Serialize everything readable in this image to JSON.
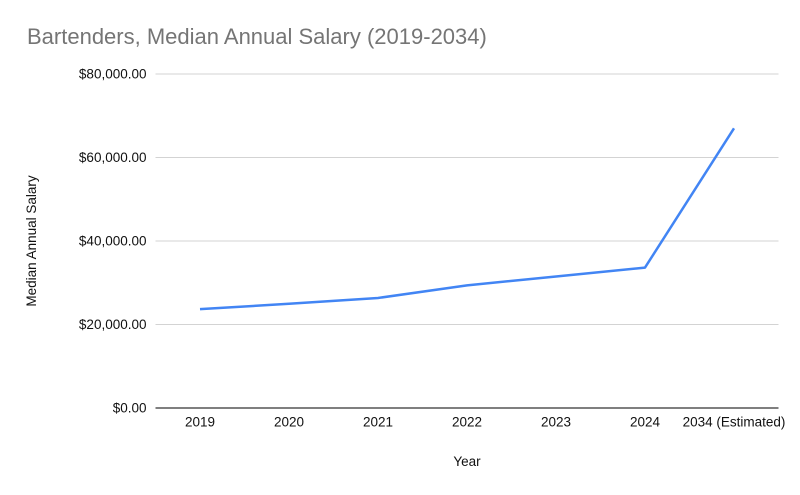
{
  "chart_data": {
    "type": "line",
    "title": "Bartenders, Median Annual Salary (2019-2034)",
    "categories": [
      "2019",
      "2020",
      "2021",
      "2022",
      "2023",
      "2024",
      "2034 (Estimated)"
    ],
    "values": [
      23680,
      24960,
      26350,
      29380,
      31510,
      33630,
      67000
    ],
    "xlabel": "Year",
    "ylabel": "Median Annual Salary",
    "ylim": [
      0,
      80000
    ],
    "y_ticks": [
      {
        "value": 0,
        "label": "$0.00"
      },
      {
        "value": 20000,
        "label": "$20,000.00"
      },
      {
        "value": 40000,
        "label": "$40,000.00"
      },
      {
        "value": 60000,
        "label": "$60,000.00"
      },
      {
        "value": 80000,
        "label": "$80,000.00"
      }
    ],
    "grid": true,
    "legend": "none",
    "colors": {
      "line": "#4285f4",
      "title_text": "#757575",
      "gridline": "#d3d3d3",
      "axis_line": "#333333",
      "tick_text": "#111111",
      "background": "#ffffff"
    }
  }
}
